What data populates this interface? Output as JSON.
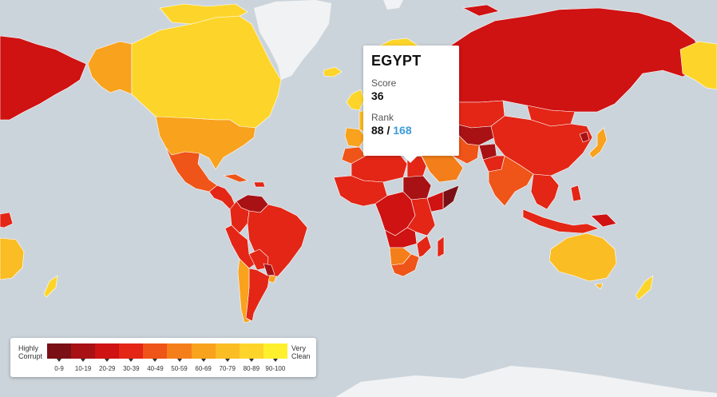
{
  "tooltip": {
    "country": "EGYPT",
    "score_label": "Score",
    "score": "36",
    "rank_label": "Rank",
    "rank": "88",
    "rank_separator": " / ",
    "rank_total": "168"
  },
  "legend": {
    "low_label": "Highly Corrupt",
    "high_label": "Very Clean",
    "buckets": [
      {
        "label": "0-9",
        "color": "#7a1016"
      },
      {
        "label": "10-19",
        "color": "#a81214"
      },
      {
        "label": "20-29",
        "color": "#cf1212"
      },
      {
        "label": "30-39",
        "color": "#e32616"
      },
      {
        "label": "40-49",
        "color": "#ef5418"
      },
      {
        "label": "50-59",
        "color": "#f47f1a"
      },
      {
        "label": "60-69",
        "color": "#f8a21d"
      },
      {
        "label": "70-79",
        "color": "#fbbd24"
      },
      {
        "label": "80-89",
        "color": "#fdd52a"
      },
      {
        "label": "90-100",
        "color": "#fff02e"
      }
    ]
  },
  "colors": {
    "ocean": "#ccd4db",
    "ice": "#f1f2f3",
    "accent_rank_total": "#3b9ad9"
  }
}
